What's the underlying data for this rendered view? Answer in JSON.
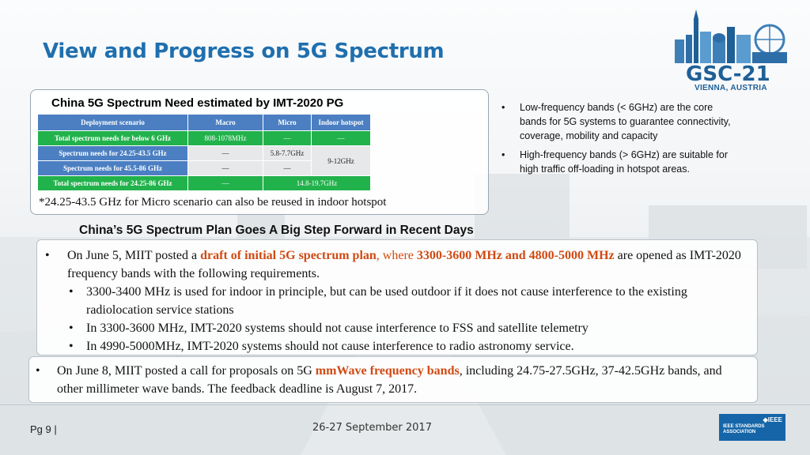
{
  "slide": {
    "title": "View and Progress on 5G Spectrum",
    "logo_text": "GSC-21",
    "logo_location": "VIENNA, AUSTRIA"
  },
  "panel": {
    "title": "China 5G Spectrum Need estimated by IMT-2020 PG",
    "table": {
      "headers": [
        "Deployment scenario",
        "Macro",
        "Micro",
        "Indoor hotspot"
      ],
      "rows": [
        {
          "label": "Total spectrum needs for below 6 GHz",
          "macro": "808-1078MHz",
          "micro": "—",
          "indoor": "—"
        },
        {
          "label": "Spectrum needs for 24.25-43.5 GHz",
          "macro": "—",
          "micro": "5.8-7.7GHz"
        },
        {
          "label": "Spectrum needs for 45.5-86 GHz",
          "macro": "—",
          "micro": "—"
        },
        {
          "label": "Total spectrum needs for 24.25-86 GHz",
          "macro": "—",
          "micro_indoor": "14.8-19.7GHz"
        }
      ],
      "indoor_merged": "9-12GHz"
    },
    "footnote": "*24.25-43.5 GHz for Micro scenario can also be reused in indoor hotspot"
  },
  "side_bullets": [
    "Low-frequency bands (< 6GHz) are the core bands for 5G systems to guarantee connectivity, coverage, mobility and capacity",
    "High-frequency bands (> 6GHz) are suitable for high traffic off-loading in hotspot areas."
  ],
  "plan": {
    "heading": "China’s 5G Spectrum Plan Goes A Big Step Forward in Recent Days",
    "bullet1": {
      "pre": "On June 5, MIIT posted a ",
      "hl1": "draft of initial 5G spectrum plan",
      "mid": ", where ",
      "hl2": "3300-3600 MHz and 4800-5000 MHz",
      "post": " are opened as IMT-2020 frequency bands with the following requirements.",
      "subs": [
        "3300-3400 MHz is used for indoor in principle, but can be used outdoor if it does not cause interference to the existing radiolocation service stations",
        "In 3300-3600 MHz, IMT-2020 systems should not cause interference to FSS and satellite telemetry",
        "In 4990-5000MHz, IMT-2020 systems should not cause interference to radio astronomy service."
      ]
    },
    "bullet2": {
      "pre": "On June 8, MIIT posted a call for proposals on 5G ",
      "hl": "mmWave frequency bands",
      "post": ", including 24.75-27.5GHz, 37-42.5GHz bands, and other millimeter wave bands. The feedback deadline is August 7, 2017."
    }
  },
  "footer": {
    "page": "Pg  9 |",
    "date": "26-27 September 2017",
    "ieee_top": "◆IEEE",
    "ieee_bottom": "IEEE STANDARDS ASSOCIATION"
  },
  "colors": {
    "title": "#1f6fae",
    "highlight": "#d04a12",
    "table_header": "#4b7fc2",
    "table_green": "#22b24c"
  }
}
